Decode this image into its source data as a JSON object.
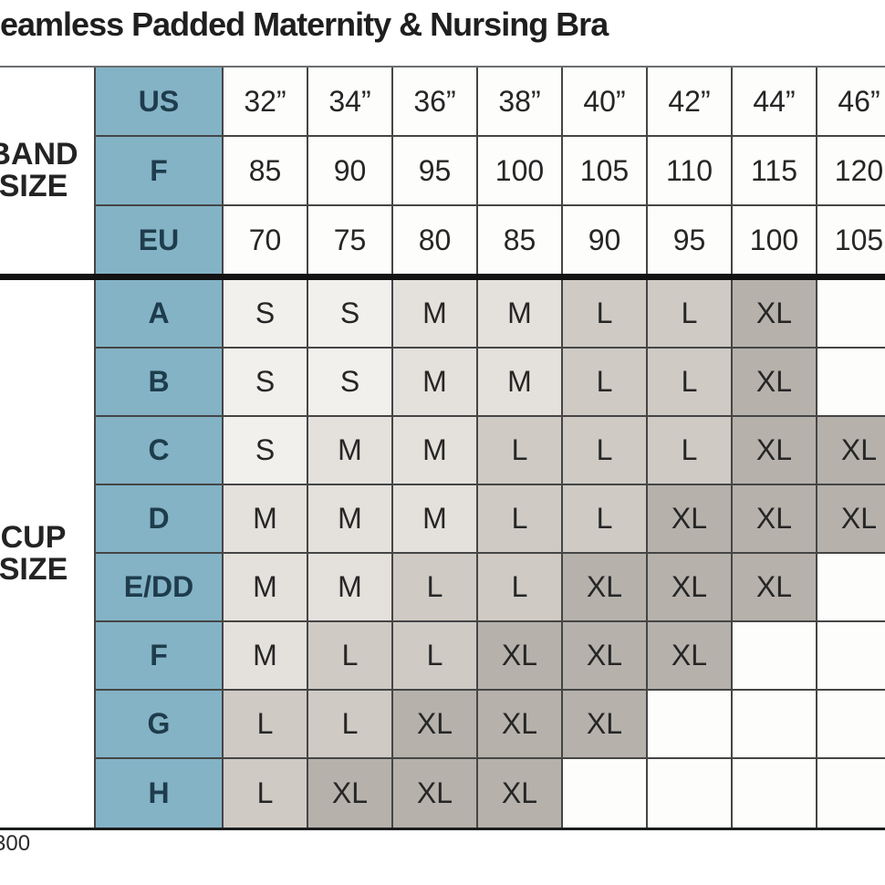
{
  "title": "eamless Padded Maternity & Nursing Bra",
  "watermark": "300",
  "colors": {
    "header_bg": "#84b3c6",
    "header_text": "#1e3c4c",
    "grid_line": "#454545",
    "divider": "#121212",
    "text": "#262626",
    "size_s_bg": "#f2f0ed",
    "size_m_bg": "#e4e0db",
    "size_l_bg": "#cfcac4",
    "size_xl_bg": "#b6b1ab",
    "empty_bg": "#fdfdfc"
  },
  "band_section": {
    "label": "BAND SIZE",
    "rows": [
      {
        "label": "US",
        "values": [
          "32”",
          "34”",
          "36”",
          "38”",
          "40”",
          "42”",
          "44”",
          "46”"
        ]
      },
      {
        "label": "F",
        "values": [
          "85",
          "90",
          "95",
          "100",
          "105",
          "110",
          "115",
          "120"
        ]
      },
      {
        "label": "EU",
        "values": [
          "70",
          "75",
          "80",
          "85",
          "90",
          "95",
          "100",
          "105"
        ]
      }
    ]
  },
  "cup_section": {
    "label": "CUP SIZE",
    "rows": [
      {
        "label": "A",
        "values": [
          "S",
          "S",
          "M",
          "M",
          "L",
          "L",
          "XL",
          ""
        ]
      },
      {
        "label": "B",
        "values": [
          "S",
          "S",
          "M",
          "M",
          "L",
          "L",
          "XL",
          ""
        ]
      },
      {
        "label": "C",
        "values": [
          "S",
          "M",
          "M",
          "L",
          "L",
          "L",
          "XL",
          "XL"
        ]
      },
      {
        "label": "D",
        "values": [
          "M",
          "M",
          "M",
          "L",
          "L",
          "XL",
          "XL",
          "XL"
        ]
      },
      {
        "label": "E/DD",
        "values": [
          "M",
          "M",
          "L",
          "L",
          "XL",
          "XL",
          "XL",
          ""
        ]
      },
      {
        "label": "F",
        "values": [
          "M",
          "L",
          "L",
          "XL",
          "XL",
          "XL",
          "",
          ""
        ]
      },
      {
        "label": "G",
        "values": [
          "L",
          "L",
          "XL",
          "XL",
          "XL",
          "",
          "",
          ""
        ]
      },
      {
        "label": "H",
        "values": [
          "L",
          "XL",
          "XL",
          "XL",
          "",
          "",
          "",
          ""
        ]
      }
    ]
  },
  "chart_data": {
    "type": "table",
    "title": "eamless Padded Maternity & Nursing Bra",
    "band_size": {
      "US": [
        "32”",
        "34”",
        "36”",
        "38”",
        "40”",
        "42”",
        "44”",
        "46”"
      ],
      "F": [
        85,
        90,
        95,
        100,
        105,
        110,
        115,
        120
      ],
      "EU": [
        70,
        75,
        80,
        85,
        90,
        95,
        100,
        105
      ]
    },
    "cup_size": {
      "A": [
        "S",
        "S",
        "M",
        "M",
        "L",
        "L",
        "XL",
        ""
      ],
      "B": [
        "S",
        "S",
        "M",
        "M",
        "L",
        "L",
        "XL",
        ""
      ],
      "C": [
        "S",
        "M",
        "M",
        "L",
        "L",
        "L",
        "XL",
        "XL"
      ],
      "D": [
        "M",
        "M",
        "M",
        "L",
        "L",
        "XL",
        "XL",
        "XL"
      ],
      "E/DD": [
        "M",
        "M",
        "L",
        "L",
        "XL",
        "XL",
        "XL",
        ""
      ],
      "F": [
        "M",
        "L",
        "L",
        "XL",
        "XL",
        "XL",
        "",
        ""
      ],
      "G": [
        "L",
        "L",
        "XL",
        "XL",
        "XL",
        "",
        "",
        ""
      ],
      "H": [
        "L",
        "XL",
        "XL",
        "XL",
        "",
        "",
        "",
        ""
      ]
    }
  }
}
